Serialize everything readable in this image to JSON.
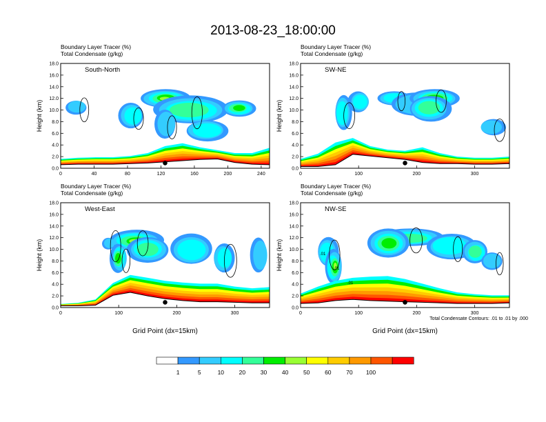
{
  "figure": {
    "title": "2013-08-23_18:00:00",
    "footnote": "Total Condensate Contours: .01 to .01 by .000"
  },
  "colorbar": {
    "labels": [
      "1",
      "5",
      "10",
      "20",
      "30",
      "40",
      "50",
      "60",
      "70",
      "100"
    ],
    "colors": [
      "#ffffff",
      "#3399ff",
      "#33ccff",
      "#00ffff",
      "#33ff99",
      "#00ee00",
      "#99ff33",
      "#ffff00",
      "#ffcc00",
      "#ff9900",
      "#ff5500",
      "#ff0000"
    ]
  },
  "chart_data": [
    {
      "type": "heatmap",
      "panel": "South-North",
      "subtitle_line1": "Boundary Layer Tracer    (%)",
      "subtitle_line2": "Total Condensate    (g/kg)",
      "ylabel": "Height (km)",
      "xlabel": "",
      "xlim": [
        0,
        250
      ],
      "ylim": [
        0,
        18
      ],
      "xticks": [
        "0",
        "40",
        "80",
        "120",
        "160",
        "200",
        "240"
      ],
      "yticks": [
        "0.0",
        "2.0",
        "4.0",
        "6.0",
        "8.0",
        "10.0",
        "12.0",
        "14.0",
        "16.0",
        "18.0"
      ],
      "terrain_height_km": [
        0.6,
        0.7,
        0.7,
        0.7,
        0.8,
        0.9,
        1.1,
        1.3,
        1.5,
        1.6,
        1.0,
        0.7,
        0.6
      ],
      "bl_depth_km": [
        1.6,
        1.8,
        1.9,
        1.9,
        2.1,
        2.6,
        3.8,
        4.3,
        3.6,
        3.1,
        2.6,
        2.6,
        3.5
      ],
      "dot_x": 125,
      "anvil": {
        "x_range": [
          80,
          210
        ],
        "height_range_km": [
          8.0,
          13.0
        ],
        "core_tracer_pct": 60
      }
    },
    {
      "type": "heatmap",
      "panel": "SW-NE",
      "subtitle_line1": "Boundary Layer Tracer    (%)",
      "subtitle_line2": "Total Condensate    (g/kg)",
      "ylabel": "Height (km)",
      "xlabel": "",
      "xlim": [
        0,
        360
      ],
      "ylim": [
        0,
        18
      ],
      "xticks": [
        "0",
        "100",
        "200",
        "300"
      ],
      "yticks": [
        "0.0",
        "2.0",
        "4.0",
        "6.0",
        "8.0",
        "10.0",
        "12.0",
        "14.0",
        "16.0",
        "18.0"
      ],
      "terrain_height_km": [
        0.3,
        0.3,
        0.6,
        2.4,
        2.1,
        1.8,
        1.5,
        1.0,
        0.8,
        0.8,
        0.7,
        0.7,
        0.8
      ],
      "bl_depth_km": [
        1.6,
        2.5,
        4.4,
        5.2,
        3.8,
        3.2,
        3.0,
        3.6,
        2.6,
        2.0,
        1.8,
        1.8,
        2.0
      ],
      "dot_x": 180,
      "anvil": {
        "x_range": [
          150,
          240
        ],
        "height_range_km": [
          8.5,
          13.5
        ],
        "core_tracer_pct": 50
      }
    },
    {
      "type": "heatmap",
      "panel": "West-East",
      "subtitle_line1": "Boundary Layer Tracer    (%)",
      "subtitle_line2": "Total Condensate    (g/kg)",
      "ylabel": "Height (km)",
      "xlabel": "Grid Point (dx=15km)",
      "xlim": [
        0,
        360
      ],
      "ylim": [
        0,
        18
      ],
      "xticks": [
        "0",
        "100",
        "200",
        "300"
      ],
      "yticks": [
        "0.0",
        "2.0",
        "4.0",
        "6.0",
        "8.0",
        "10.0",
        "12.0",
        "14.0",
        "16.0",
        "18.0"
      ],
      "terrain_height_km": [
        0.3,
        0.3,
        0.4,
        2.1,
        2.6,
        2.0,
        1.5,
        1.2,
        1.0,
        1.0,
        0.9,
        0.8,
        0.8
      ],
      "bl_depth_km": [
        0.6,
        0.8,
        1.4,
        4.2,
        5.6,
        5.1,
        4.6,
        4.3,
        4.1,
        4.1,
        3.6,
        3.3,
        3.5
      ],
      "dot_x": 180,
      "anvil": {
        "x_range": [
          100,
          230
        ],
        "height_range_km": [
          9.0,
          13.5
        ],
        "core_tracer_pct": 50
      }
    },
    {
      "type": "heatmap",
      "panel": "NW-SE",
      "subtitle_line1": "Boundary Layer Tracer    (%)",
      "subtitle_line2": "Total Condensate    (g/kg)",
      "ylabel": "Height (km)",
      "xlabel": "Grid Point (dx=15km)",
      "xlim": [
        0,
        360
      ],
      "ylim": [
        0,
        18
      ],
      "xticks": [
        "0",
        "100",
        "200",
        "300"
      ],
      "yticks": [
        "0.0",
        "2.0",
        "4.0",
        "6.0",
        "8.0",
        "10.0",
        "12.0",
        "14.0",
        "16.0",
        "18.0"
      ],
      "terrain_height_km": [
        0.7,
        0.8,
        1.2,
        1.4,
        1.2,
        1.1,
        1.0,
        0.9,
        0.8,
        0.7,
        0.7,
        0.7,
        0.8
      ],
      "bl_depth_km": [
        2.4,
        3.6,
        4.6,
        5.1,
        5.3,
        5.4,
        4.9,
        4.1,
        3.3,
        2.6,
        2.3,
        2.1,
        2.1
      ],
      "dot_x": 180,
      "anvil": {
        "x_range": [
          70,
          240
        ],
        "height_range_km": [
          8.5,
          13.5
        ],
        "core_tracer_pct": 50
      },
      "contour_labels": [
        ".01",
        ".01",
        ".01"
      ]
    }
  ]
}
